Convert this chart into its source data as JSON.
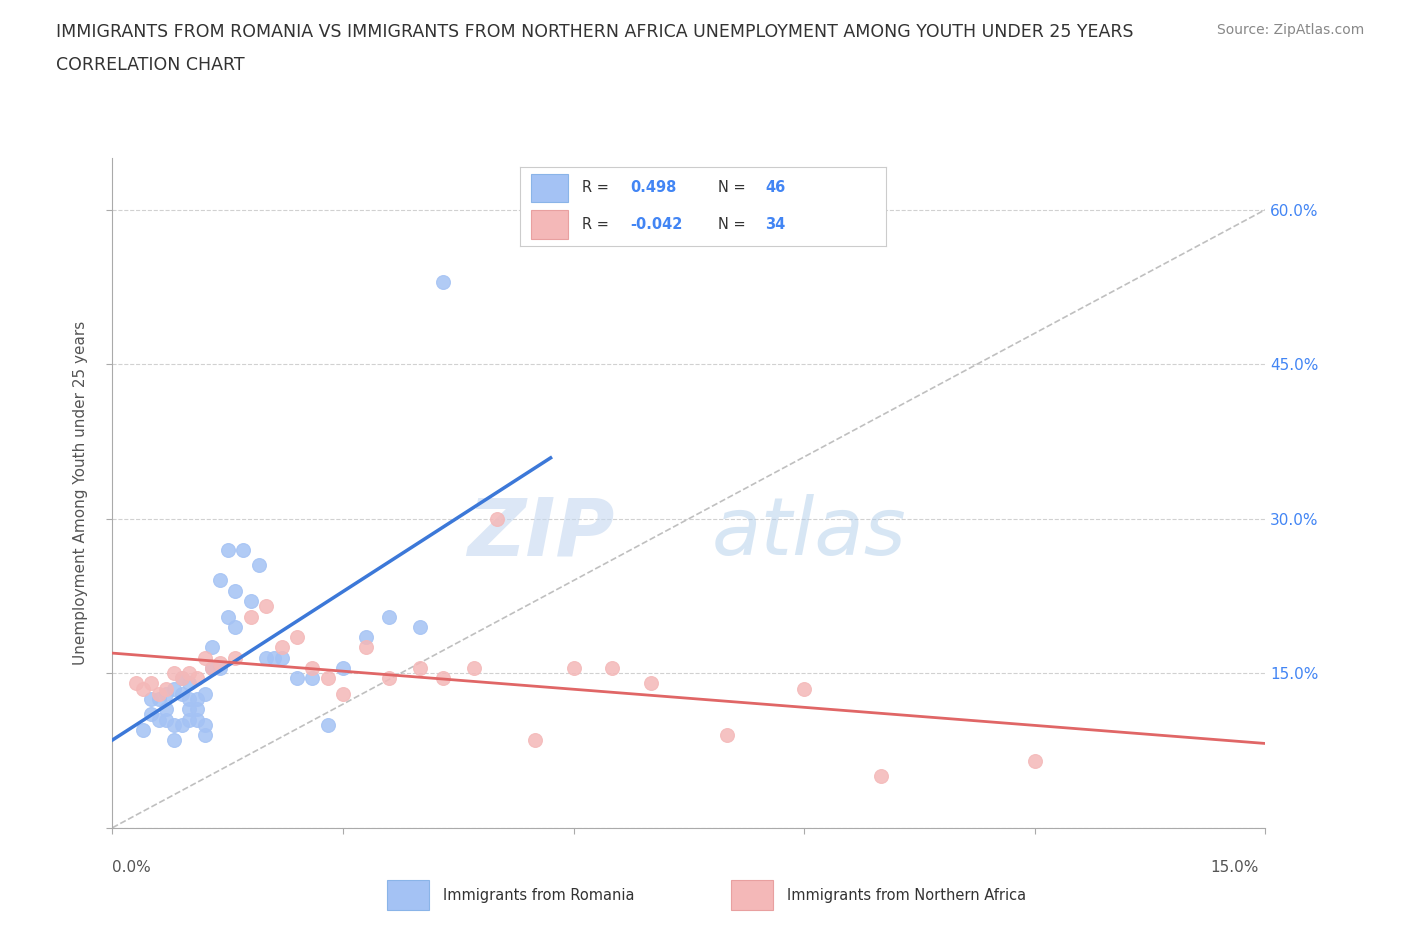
{
  "title_line1": "IMMIGRANTS FROM ROMANIA VS IMMIGRANTS FROM NORTHERN AFRICA UNEMPLOYMENT AMONG YOUTH UNDER 25 YEARS",
  "title_line2": "CORRELATION CHART",
  "source": "Source: ZipAtlas.com",
  "ylabel": "Unemployment Among Youth under 25 years",
  "xlim": [
    0.0,
    0.15
  ],
  "ylim": [
    0.0,
    0.65
  ],
  "color_romania": "#a4c2f4",
  "color_n_africa": "#f4b8b8",
  "color_trendline_romania": "#3c78d8",
  "color_trendline_n_africa": "#e06666",
  "color_diagonal": "#b0b0b0",
  "R_romania": 0.498,
  "N_romania": 46,
  "R_n_africa": -0.042,
  "N_n_africa": 34,
  "romania_x": [
    0.004,
    0.005,
    0.005,
    0.006,
    0.006,
    0.007,
    0.007,
    0.007,
    0.008,
    0.008,
    0.008,
    0.009,
    0.009,
    0.009,
    0.01,
    0.01,
    0.01,
    0.01,
    0.011,
    0.011,
    0.011,
    0.012,
    0.012,
    0.012,
    0.013,
    0.013,
    0.014,
    0.014,
    0.015,
    0.015,
    0.016,
    0.016,
    0.017,
    0.018,
    0.019,
    0.02,
    0.021,
    0.022,
    0.024,
    0.026,
    0.028,
    0.03,
    0.033,
    0.036,
    0.04,
    0.043
  ],
  "romania_y": [
    0.095,
    0.11,
    0.125,
    0.105,
    0.125,
    0.105,
    0.115,
    0.13,
    0.085,
    0.1,
    0.135,
    0.1,
    0.13,
    0.145,
    0.105,
    0.115,
    0.125,
    0.14,
    0.105,
    0.115,
    0.125,
    0.09,
    0.1,
    0.13,
    0.155,
    0.175,
    0.155,
    0.24,
    0.205,
    0.27,
    0.195,
    0.23,
    0.27,
    0.22,
    0.255,
    0.165,
    0.165,
    0.165,
    0.145,
    0.145,
    0.1,
    0.155,
    0.185,
    0.205,
    0.195,
    0.53
  ],
  "n_africa_x": [
    0.003,
    0.004,
    0.005,
    0.006,
    0.007,
    0.008,
    0.009,
    0.01,
    0.011,
    0.012,
    0.013,
    0.014,
    0.016,
    0.018,
    0.02,
    0.022,
    0.024,
    0.026,
    0.028,
    0.03,
    0.033,
    0.036,
    0.04,
    0.043,
    0.047,
    0.05,
    0.055,
    0.06,
    0.065,
    0.07,
    0.08,
    0.09,
    0.1,
    0.12
  ],
  "n_africa_y": [
    0.14,
    0.135,
    0.14,
    0.13,
    0.135,
    0.15,
    0.145,
    0.15,
    0.145,
    0.165,
    0.155,
    0.16,
    0.165,
    0.205,
    0.215,
    0.175,
    0.185,
    0.155,
    0.145,
    0.13,
    0.175,
    0.145,
    0.155,
    0.145,
    0.155,
    0.3,
    0.085,
    0.155,
    0.155,
    0.14,
    0.09,
    0.135,
    0.05,
    0.065
  ],
  "watermark_zip": "ZIP",
  "watermark_atlas": "atlas",
  "background_color": "#ffffff",
  "grid_color": "#cccccc",
  "right_yticks": [
    0.15,
    0.3,
    0.45,
    0.6
  ],
  "right_ytick_labels": [
    "15.0%",
    "30.0%",
    "45.0%",
    "60.0%"
  ]
}
